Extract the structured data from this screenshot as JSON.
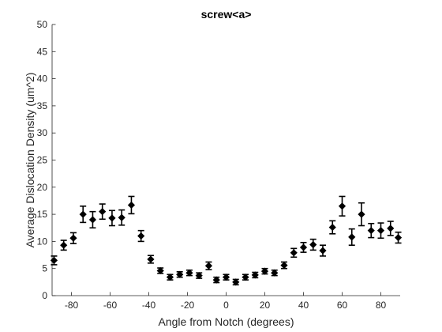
{
  "chart_data": {
    "type": "scatter",
    "title": "screw<a>",
    "xlabel": "Angle from Notch (degrees)",
    "ylabel": "Average Dislocation Density (um^2)",
    "xlim": [
      -90,
      90
    ],
    "ylim": [
      0,
      50
    ],
    "xticks": [
      -80,
      -60,
      -40,
      -20,
      0,
      20,
      40,
      60,
      80
    ],
    "yticks": [
      0,
      5,
      10,
      15,
      20,
      25,
      30,
      35,
      40,
      45,
      50
    ],
    "grid": false,
    "marker": "diamond",
    "color": "#000000",
    "x": [
      -89,
      -84,
      -79,
      -74,
      -69,
      -64,
      -59,
      -54,
      -49,
      -44,
      -39,
      -34,
      -29,
      -24,
      -19,
      -14,
      -9,
      -5,
      0,
      5,
      10,
      15,
      20,
      25,
      30,
      35,
      40,
      45,
      50,
      55,
      60,
      65,
      70,
      75,
      80,
      85,
      89
    ],
    "y": [
      6.5,
      9.3,
      10.6,
      15.0,
      14.0,
      15.5,
      14.3,
      14.4,
      16.7,
      11.0,
      6.7,
      4.6,
      3.4,
      3.9,
      4.2,
      3.7,
      5.5,
      2.9,
      3.4,
      2.5,
      3.4,
      3.8,
      4.5,
      4.2,
      5.6,
      7.9,
      8.9,
      9.4,
      8.3,
      12.6,
      16.5,
      10.8,
      15.0,
      12.0,
      12.0,
      12.4,
      10.7
    ],
    "err": [
      0.8,
      0.9,
      1.0,
      1.5,
      1.5,
      1.4,
      1.4,
      1.4,
      1.6,
      1.0,
      0.7,
      0.5,
      0.5,
      0.5,
      0.5,
      0.5,
      0.7,
      0.5,
      0.5,
      0.5,
      0.5,
      0.5,
      0.5,
      0.5,
      0.6,
      0.8,
      0.9,
      1.0,
      1.0,
      1.2,
      1.8,
      1.5,
      2.1,
      1.3,
      1.4,
      1.3,
      1.0
    ]
  }
}
